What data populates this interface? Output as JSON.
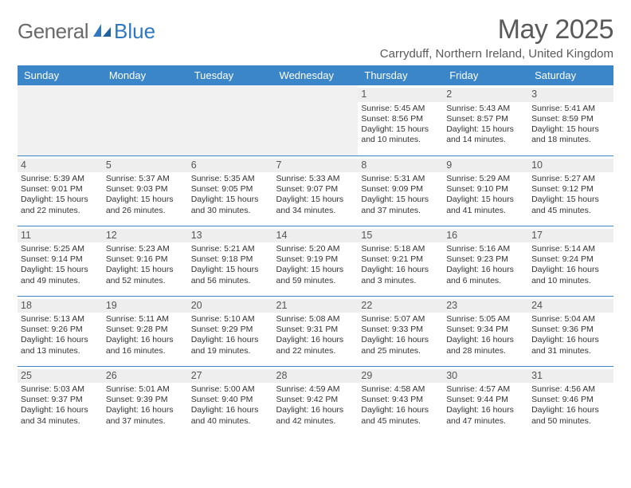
{
  "brand": {
    "general": "General",
    "blue": "Blue"
  },
  "title": "May 2025",
  "location": "Carryduff, Northern Ireland, United Kingdom",
  "colors": {
    "header_bg": "#3a86c8",
    "border": "#3a86c8",
    "accent": "#2f78bf"
  },
  "weekdays": [
    "Sunday",
    "Monday",
    "Tuesday",
    "Wednesday",
    "Thursday",
    "Friday",
    "Saturday"
  ],
  "grid": [
    [
      null,
      null,
      null,
      null,
      {
        "n": "1",
        "sr": "5:45 AM",
        "ss": "8:56 PM",
        "dl": "15 hours and 10 minutes."
      },
      {
        "n": "2",
        "sr": "5:43 AM",
        "ss": "8:57 PM",
        "dl": "15 hours and 14 minutes."
      },
      {
        "n": "3",
        "sr": "5:41 AM",
        "ss": "8:59 PM",
        "dl": "15 hours and 18 minutes."
      }
    ],
    [
      {
        "n": "4",
        "sr": "5:39 AM",
        "ss": "9:01 PM",
        "dl": "15 hours and 22 minutes."
      },
      {
        "n": "5",
        "sr": "5:37 AM",
        "ss": "9:03 PM",
        "dl": "15 hours and 26 minutes."
      },
      {
        "n": "6",
        "sr": "5:35 AM",
        "ss": "9:05 PM",
        "dl": "15 hours and 30 minutes."
      },
      {
        "n": "7",
        "sr": "5:33 AM",
        "ss": "9:07 PM",
        "dl": "15 hours and 34 minutes."
      },
      {
        "n": "8",
        "sr": "5:31 AM",
        "ss": "9:09 PM",
        "dl": "15 hours and 37 minutes."
      },
      {
        "n": "9",
        "sr": "5:29 AM",
        "ss": "9:10 PM",
        "dl": "15 hours and 41 minutes."
      },
      {
        "n": "10",
        "sr": "5:27 AM",
        "ss": "9:12 PM",
        "dl": "15 hours and 45 minutes."
      }
    ],
    [
      {
        "n": "11",
        "sr": "5:25 AM",
        "ss": "9:14 PM",
        "dl": "15 hours and 49 minutes."
      },
      {
        "n": "12",
        "sr": "5:23 AM",
        "ss": "9:16 PM",
        "dl": "15 hours and 52 minutes."
      },
      {
        "n": "13",
        "sr": "5:21 AM",
        "ss": "9:18 PM",
        "dl": "15 hours and 56 minutes."
      },
      {
        "n": "14",
        "sr": "5:20 AM",
        "ss": "9:19 PM",
        "dl": "15 hours and 59 minutes."
      },
      {
        "n": "15",
        "sr": "5:18 AM",
        "ss": "9:21 PM",
        "dl": "16 hours and 3 minutes."
      },
      {
        "n": "16",
        "sr": "5:16 AM",
        "ss": "9:23 PM",
        "dl": "16 hours and 6 minutes."
      },
      {
        "n": "17",
        "sr": "5:14 AM",
        "ss": "9:24 PM",
        "dl": "16 hours and 10 minutes."
      }
    ],
    [
      {
        "n": "18",
        "sr": "5:13 AM",
        "ss": "9:26 PM",
        "dl": "16 hours and 13 minutes."
      },
      {
        "n": "19",
        "sr": "5:11 AM",
        "ss": "9:28 PM",
        "dl": "16 hours and 16 minutes."
      },
      {
        "n": "20",
        "sr": "5:10 AM",
        "ss": "9:29 PM",
        "dl": "16 hours and 19 minutes."
      },
      {
        "n": "21",
        "sr": "5:08 AM",
        "ss": "9:31 PM",
        "dl": "16 hours and 22 minutes."
      },
      {
        "n": "22",
        "sr": "5:07 AM",
        "ss": "9:33 PM",
        "dl": "16 hours and 25 minutes."
      },
      {
        "n": "23",
        "sr": "5:05 AM",
        "ss": "9:34 PM",
        "dl": "16 hours and 28 minutes."
      },
      {
        "n": "24",
        "sr": "5:04 AM",
        "ss": "9:36 PM",
        "dl": "16 hours and 31 minutes."
      }
    ],
    [
      {
        "n": "25",
        "sr": "5:03 AM",
        "ss": "9:37 PM",
        "dl": "16 hours and 34 minutes."
      },
      {
        "n": "26",
        "sr": "5:01 AM",
        "ss": "9:39 PM",
        "dl": "16 hours and 37 minutes."
      },
      {
        "n": "27",
        "sr": "5:00 AM",
        "ss": "9:40 PM",
        "dl": "16 hours and 40 minutes."
      },
      {
        "n": "28",
        "sr": "4:59 AM",
        "ss": "9:42 PM",
        "dl": "16 hours and 42 minutes."
      },
      {
        "n": "29",
        "sr": "4:58 AM",
        "ss": "9:43 PM",
        "dl": "16 hours and 45 minutes."
      },
      {
        "n": "30",
        "sr": "4:57 AM",
        "ss": "9:44 PM",
        "dl": "16 hours and 47 minutes."
      },
      {
        "n": "31",
        "sr": "4:56 AM",
        "ss": "9:46 PM",
        "dl": "16 hours and 50 minutes."
      }
    ]
  ],
  "labels": {
    "sunrise": "Sunrise: ",
    "sunset": "Sunset: ",
    "daylight": "Daylight: "
  }
}
